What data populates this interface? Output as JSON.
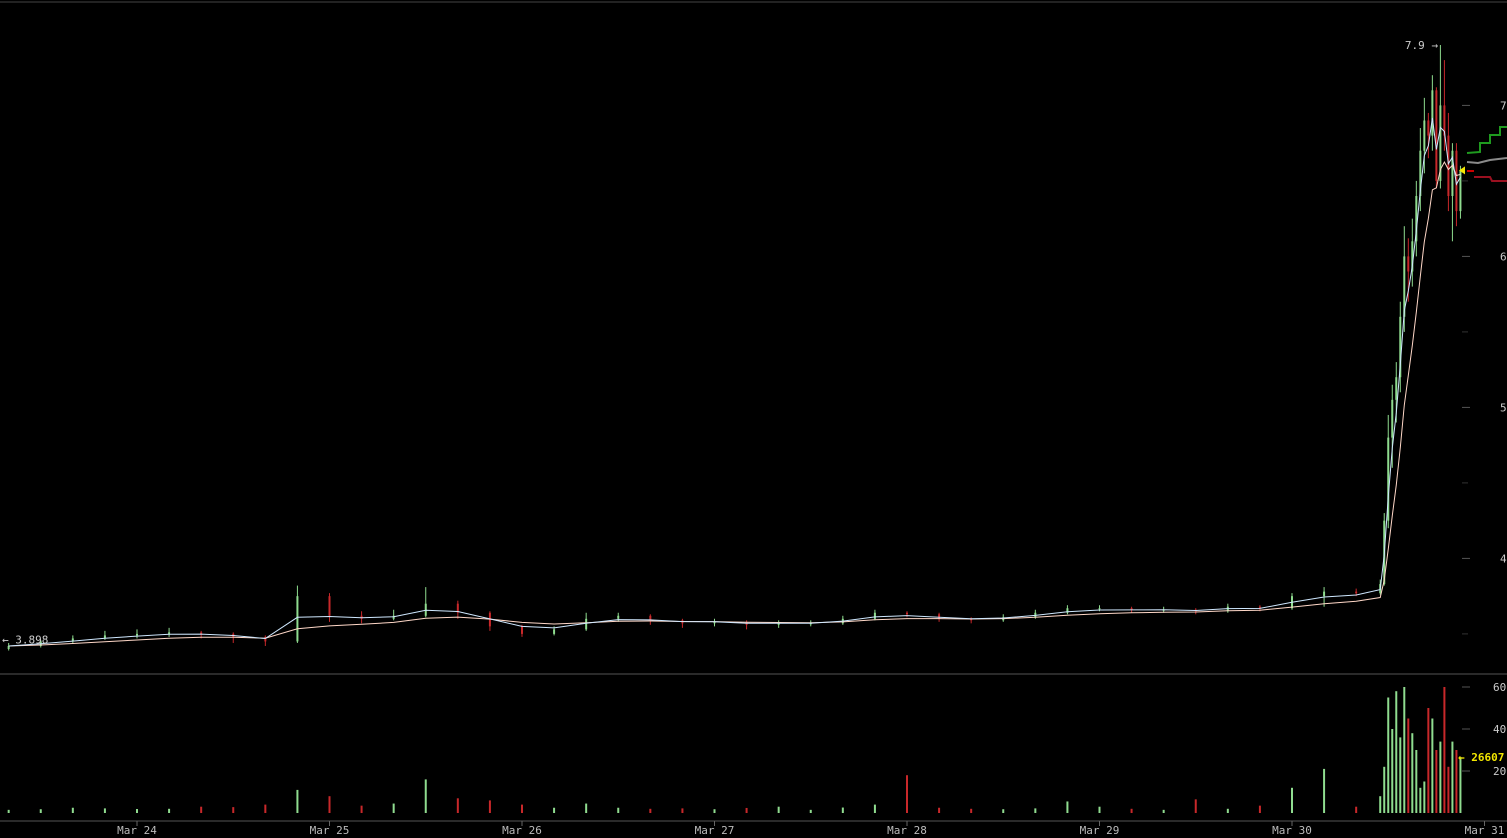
{
  "chart_data": {
    "type": "candlestick",
    "title": "",
    "colors": {
      "up": "#8fdc8f",
      "down": "#c8282a",
      "ma_fast": "#cfe8ff",
      "ma_slow": "#ffd8c8",
      "marker": "#f2e600",
      "label": "#cccccc",
      "grid_tick": "#555555"
    },
    "price_axis": {
      "ticks": [
        "7.5",
        "6.5",
        "5.5",
        "4.5"
      ],
      "tick_values": [
        7.5,
        6.5,
        5.5,
        4.5
      ],
      "minor_values": [
        7.0,
        6.0,
        5.0,
        4.0
      ],
      "range": [
        3.8,
        7.95
      ]
    },
    "volume_axis": {
      "ticks": [
        "60000",
        "40000",
        "20000"
      ],
      "tick_values": [
        60000,
        40000,
        20000
      ],
      "range": [
        0,
        62000
      ]
    },
    "time_axis": {
      "ticks": [
        "Mar 24",
        "Mar 25",
        "Mar 26",
        "Mar 27",
        "Mar 28",
        "Mar 29",
        "Mar 30",
        "Mar 31"
      ],
      "tick_dates": [
        "03-24 00:00",
        "03-25 00:00",
        "03-26 00:00",
        "03-27 00:00",
        "03-28 00:00",
        "03-29 00:00",
        "03-30 00:00",
        "03-31 00:00"
      ]
    },
    "annotations": {
      "high_label": "7.9 →",
      "high_value": 7.9,
      "low_label": "← 3.898",
      "low_value": 3.898,
      "last_volume_label": "← 26607",
      "last_volume": 26607,
      "last_price": 7.07
    },
    "candles": [
      [
        "03-23 08:00",
        3.9,
        3.94,
        3.89,
        3.92,
        1500
      ],
      [
        "03-23 12:00",
        3.92,
        3.96,
        3.91,
        3.95,
        1800
      ],
      [
        "03-23 16:00",
        3.95,
        3.99,
        3.94,
        3.97,
        2500
      ],
      [
        "03-23 20:00",
        3.97,
        4.02,
        3.96,
        3.99,
        2200
      ],
      [
        "03-24 00:00",
        3.99,
        4.03,
        3.97,
        4.0,
        1900
      ],
      [
        "03-24 04:00",
        4.0,
        4.04,
        3.98,
        4.01,
        2000
      ],
      [
        "03-24 08:00",
        4.01,
        4.02,
        3.97,
        4.0,
        3000
      ],
      [
        "03-24 12:00",
        4.0,
        4.01,
        3.94,
        3.98,
        2800
      ],
      [
        "03-24 16:00",
        3.98,
        3.99,
        3.92,
        3.95,
        4000
      ],
      [
        "03-24 20:00",
        3.95,
        4.32,
        3.94,
        4.25,
        11000
      ],
      [
        "03-25 00:00",
        4.25,
        4.27,
        4.08,
        4.12,
        8000
      ],
      [
        "03-25 04:00",
        4.12,
        4.15,
        4.07,
        4.1,
        3500
      ],
      [
        "03-25 08:00",
        4.1,
        4.16,
        4.09,
        4.12,
        4500
      ],
      [
        "03-25 12:00",
        4.12,
        4.31,
        4.11,
        4.2,
        16000
      ],
      [
        "03-25 16:00",
        4.2,
        4.22,
        4.1,
        4.14,
        7000
      ],
      [
        "03-25 20:00",
        4.14,
        4.15,
        4.02,
        4.05,
        6000
      ],
      [
        "03-26 00:00",
        4.05,
        4.06,
        3.98,
        4.0,
        4000
      ],
      [
        "03-26 04:00",
        4.0,
        4.05,
        3.99,
        4.03,
        2500
      ],
      [
        "03-26 08:00",
        4.03,
        4.14,
        4.02,
        4.1,
        4500
      ],
      [
        "03-26 12:00",
        4.1,
        4.14,
        4.08,
        4.12,
        2500
      ],
      [
        "03-26 16:00",
        4.12,
        4.13,
        4.06,
        4.09,
        2000
      ],
      [
        "03-26 20:00",
        4.09,
        4.1,
        4.04,
        4.07,
        2200
      ],
      [
        "03-27 00:00",
        4.07,
        4.1,
        4.05,
        4.08,
        1800
      ],
      [
        "03-27 04:00",
        4.08,
        4.09,
        4.03,
        4.06,
        2400
      ],
      [
        "03-27 08:00",
        4.06,
        4.09,
        4.04,
        4.07,
        3000
      ],
      [
        "03-27 12:00",
        4.07,
        4.09,
        4.05,
        4.07,
        1500
      ],
      [
        "03-27 16:00",
        4.07,
        4.12,
        4.06,
        4.1,
        2600
      ],
      [
        "03-27 20:00",
        4.1,
        4.16,
        4.09,
        4.14,
        4000
      ],
      [
        "03-28 00:00",
        4.14,
        4.15,
        4.11,
        4.13,
        18000
      ],
      [
        "03-28 04:00",
        4.13,
        4.14,
        4.08,
        4.1,
        2500
      ],
      [
        "03-28 08:00",
        4.1,
        4.11,
        4.07,
        4.09,
        2000
      ],
      [
        "03-28 12:00",
        4.09,
        4.13,
        4.08,
        4.11,
        1800
      ],
      [
        "03-28 16:00",
        4.11,
        4.16,
        4.1,
        4.14,
        2200
      ],
      [
        "03-28 20:00",
        4.14,
        4.19,
        4.13,
        4.17,
        5500
      ],
      [
        "03-29 00:00",
        4.17,
        4.19,
        4.15,
        4.17,
        3000
      ],
      [
        "03-29 04:00",
        4.17,
        4.18,
        4.14,
        4.16,
        2000
      ],
      [
        "03-29 08:00",
        4.16,
        4.18,
        4.14,
        4.16,
        1500
      ],
      [
        "03-29 12:00",
        4.16,
        4.17,
        4.13,
        4.15,
        6500
      ],
      [
        "03-29 16:00",
        4.15,
        4.2,
        4.14,
        4.18,
        2000
      ],
      [
        "03-29 20:00",
        4.18,
        4.19,
        4.15,
        4.17,
        3500
      ],
      [
        "03-30 00:00",
        4.17,
        4.27,
        4.16,
        4.25,
        12000
      ],
      [
        "03-30 04:00",
        4.25,
        4.31,
        4.18,
        4.28,
        21000
      ],
      [
        "03-30 08:00",
        4.28,
        4.3,
        4.25,
        4.27,
        3000
      ],
      [
        "03-30 11:00",
        4.27,
        4.36,
        4.26,
        4.33,
        8000
      ],
      [
        "03-30 11:30",
        4.33,
        4.8,
        4.32,
        4.75,
        22000
      ],
      [
        "03-30 12:00",
        4.75,
        5.45,
        4.7,
        5.3,
        55000
      ],
      [
        "03-30 12:30",
        5.3,
        5.65,
        5.1,
        5.55,
        40000
      ],
      [
        "03-30 13:00",
        5.55,
        5.8,
        5.4,
        5.7,
        58000
      ],
      [
        "03-30 13:30",
        5.7,
        6.2,
        5.6,
        6.1,
        36000
      ],
      [
        "03-30 14:00",
        6.1,
        6.7,
        6.0,
        6.5,
        60000
      ],
      [
        "03-30 14:30",
        6.5,
        6.62,
        6.2,
        6.4,
        45000
      ],
      [
        "03-30 15:00",
        6.4,
        6.75,
        6.3,
        6.6,
        38000
      ],
      [
        "03-30 15:30",
        6.6,
        7.0,
        6.5,
        6.9,
        30000
      ],
      [
        "03-30 16:00",
        6.9,
        7.35,
        6.8,
        7.2,
        12000
      ],
      [
        "03-30 16:30",
        7.2,
        7.55,
        7.05,
        7.4,
        15000
      ],
      [
        "03-30 17:00",
        7.4,
        7.45,
        7.15,
        7.3,
        50000
      ],
      [
        "03-30 17:30",
        7.3,
        7.7,
        7.2,
        7.6,
        45000
      ],
      [
        "03-30 18:00",
        7.6,
        7.62,
        6.95,
        7.0,
        30000
      ],
      [
        "03-30 18:30",
        7.0,
        7.9,
        6.95,
        7.5,
        34000
      ],
      [
        "03-30 19:00",
        7.5,
        7.8,
        7.2,
        7.3,
        60000
      ],
      [
        "03-30 19:30",
        7.3,
        7.45,
        6.8,
        6.9,
        22000
      ],
      [
        "03-30 20:00",
        6.9,
        7.25,
        6.6,
        7.2,
        34000
      ],
      [
        "03-30 20:30",
        7.2,
        7.25,
        6.7,
        6.8,
        30000
      ],
      [
        "03-30 21:00",
        6.8,
        7.1,
        6.75,
        7.07,
        26607
      ]
    ]
  }
}
